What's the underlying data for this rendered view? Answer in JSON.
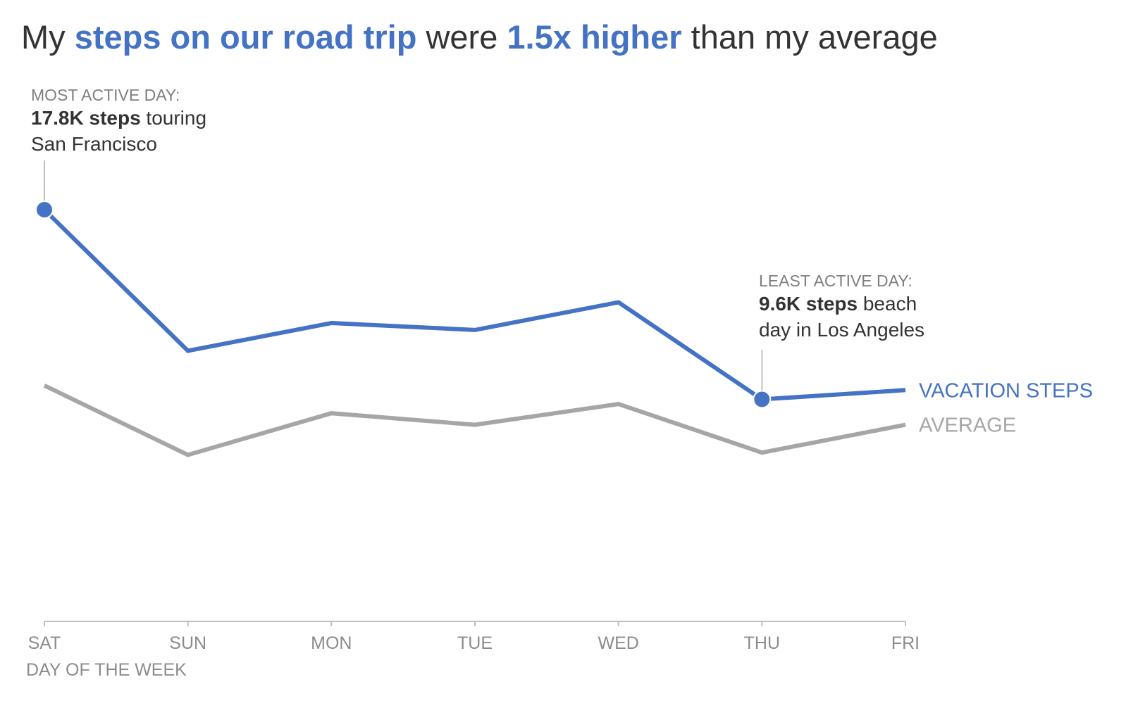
{
  "title": {
    "part1": "My ",
    "part2": "steps on our road trip",
    "part3": " were ",
    "part4": "1.5x higher",
    "part5": " than my average"
  },
  "colors": {
    "vacation": "#4472c4",
    "average": "#a6a6a6",
    "axis": "#bfbfbf",
    "text": "#333333",
    "muted": "#8c8c8c"
  },
  "annotations": {
    "most_active": {
      "heading": "MOST ACTIVE DAY:",
      "bold": "17.8K steps",
      "rest": " touring",
      "line2": "San Francisco"
    },
    "least_active": {
      "heading": "LEAST ACTIVE DAY:",
      "bold": "9.6K steps",
      "rest": " beach",
      "line2": "day in Los Angeles"
    }
  },
  "chart_data": {
    "type": "line",
    "categories": [
      "SAT",
      "SUN",
      "MON",
      "TUE",
      "WED",
      "THU",
      "FRI"
    ],
    "xlabel": "DAY OF THE WEEK",
    "ylim": [
      0,
      19000
    ],
    "series": [
      {
        "name": "VACATION STEPS",
        "values": [
          17800,
          11700,
          12900,
          12600,
          13800,
          9600,
          10000
        ]
      },
      {
        "name": "AVERAGE",
        "values": [
          10200,
          7200,
          9000,
          8500,
          9400,
          7300,
          8500
        ]
      }
    ],
    "highlights": [
      {
        "series": 0,
        "index": 0,
        "label": "most_active"
      },
      {
        "series": 0,
        "index": 5,
        "label": "least_active"
      }
    ],
    "grid": false,
    "legend": "inline-right"
  }
}
